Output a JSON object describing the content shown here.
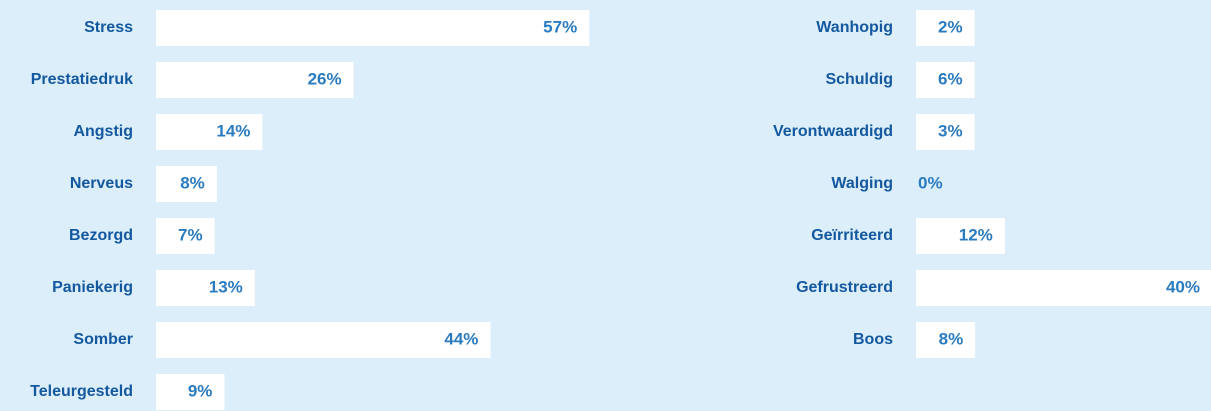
{
  "chart_data": [
    {
      "type": "hbar",
      "categories": [
        "Stress",
        "Prestatiedruk",
        "Angstig",
        "Nerveus",
        "Bezorgd",
        "Paniekerig",
        "Somber",
        "Teleurgesteld"
      ],
      "values": [
        57,
        26,
        14,
        8,
        7,
        13,
        44,
        9
      ],
      "value_labels": [
        "57%",
        "26%",
        "14%",
        "8%",
        "7%",
        "13%",
        "44%",
        "9%"
      ],
      "color": "#ffffff"
    },
    {
      "type": "hbar",
      "categories": [
        "Wanhopig",
        "Schuldig",
        "Verontwaardigd",
        "Walging",
        "Geïrriteerd",
        "Gefrustreerd",
        "Boos"
      ],
      "values": [
        2,
        6,
        3,
        0,
        12,
        40,
        8
      ],
      "value_labels": [
        "2%",
        "6%",
        "3%",
        "0%",
        "12%",
        "40%",
        "8%"
      ],
      "color": "#ffffff"
    }
  ]
}
